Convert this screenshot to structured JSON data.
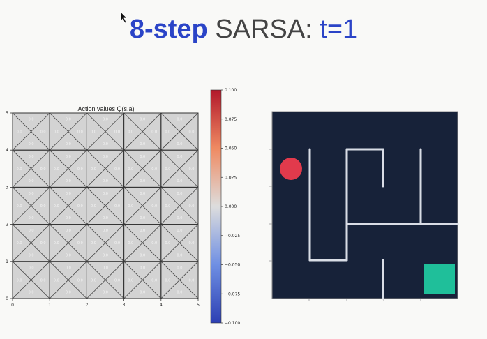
{
  "header": {
    "bold_part": "8-step",
    "plain_part": "SARSA:",
    "time_part": "t=1",
    "accent_color": "#2b44c7"
  },
  "grid_chart": {
    "title": "Action values Q(s,a)",
    "x_ticks": [
      "0",
      "1",
      "2",
      "3",
      "4",
      "5"
    ],
    "y_ticks": [
      "0",
      "1",
      "2",
      "3",
      "4",
      "5"
    ],
    "cell_value": "0.0",
    "cell_color": "#d3d3d3",
    "rows": 5,
    "cols": 5
  },
  "colorbar": {
    "ticks": [
      "0.100",
      "0.075",
      "0.050",
      "0.025",
      "0.000",
      "−0.025",
      "−0.050",
      "−0.075",
      "−0.100"
    ],
    "colors": {
      "top": "#b2182b",
      "mid": "#dddddd",
      "bottom": "#2c3fb3"
    }
  },
  "maze": {
    "background": "#172239",
    "agent_color": "#e23a4c",
    "goal_color": "#1fbf9a",
    "wall_color": "#d9dde6"
  }
}
